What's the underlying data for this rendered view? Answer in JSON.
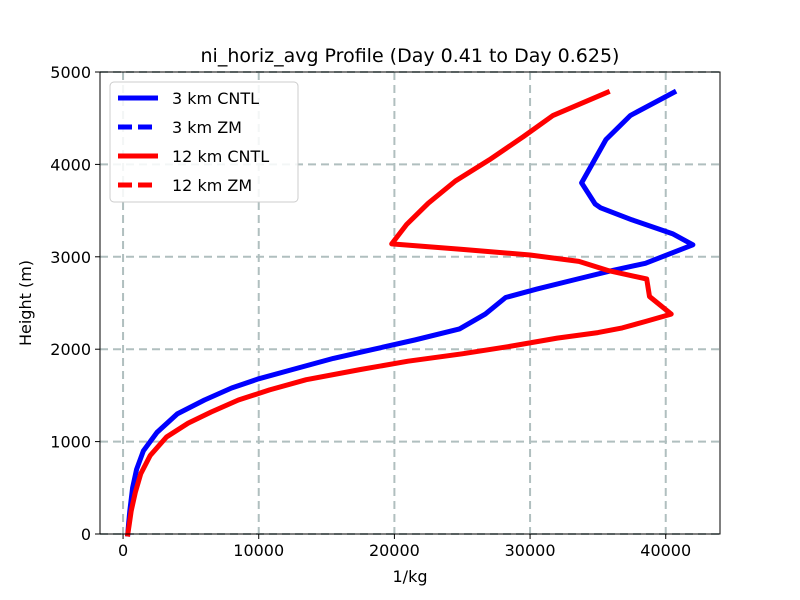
{
  "chart_data": {
    "type": "line",
    "title": "ni_horiz_avg Profile (Day 0.41 to Day 0.625)",
    "xlabel": "1/kg",
    "ylabel": "Height (m)",
    "xlim": [
      -1700,
      44000
    ],
    "ylim": [
      0,
      5000
    ],
    "xticks": [
      0,
      10000,
      20000,
      30000,
      40000
    ],
    "yticks": [
      0,
      1000,
      2000,
      3000,
      4000,
      5000
    ],
    "xtick_labels": [
      "0",
      "10000",
      "20000",
      "30000",
      "40000"
    ],
    "ytick_labels": [
      "0",
      "1000",
      "2000",
      "3000",
      "4000",
      "5000"
    ],
    "grid": true,
    "legend_position": "top-left",
    "series": [
      {
        "name": "3 km CNTL",
        "color": "#0000ff",
        "style": "solid",
        "points": [
          [
            350,
            0
          ],
          [
            400,
            100
          ],
          [
            500,
            250
          ],
          [
            700,
            500
          ],
          [
            1000,
            700
          ],
          [
            1500,
            900
          ],
          [
            2500,
            1100
          ],
          [
            4000,
            1300
          ],
          [
            6000,
            1450
          ],
          [
            8000,
            1580
          ],
          [
            10000,
            1680
          ],
          [
            12500,
            1780
          ],
          [
            15500,
            1900
          ],
          [
            18500,
            2000
          ],
          [
            21500,
            2100
          ],
          [
            24800,
            2220
          ],
          [
            26700,
            2380
          ],
          [
            28200,
            2560
          ],
          [
            30500,
            2650
          ],
          [
            33500,
            2760
          ],
          [
            36000,
            2850
          ],
          [
            38500,
            2930
          ],
          [
            42000,
            3130
          ],
          [
            40500,
            3250
          ],
          [
            37500,
            3400
          ],
          [
            35200,
            3530
          ],
          [
            34800,
            3570
          ],
          [
            33800,
            3800
          ],
          [
            35600,
            4270
          ],
          [
            37400,
            4530
          ],
          [
            40600,
            4780
          ]
        ]
      },
      {
        "name": "3 km ZM",
        "color": "#0000ff",
        "style": "dashed",
        "points": []
      },
      {
        "name": "12 km CNTL",
        "color": "#ff0000",
        "style": "solid",
        "points": [
          [
            350,
            0
          ],
          [
            450,
            100
          ],
          [
            600,
            250
          ],
          [
            900,
            450
          ],
          [
            1300,
            650
          ],
          [
            2000,
            850
          ],
          [
            3200,
            1050
          ],
          [
            4800,
            1200
          ],
          [
            6500,
            1320
          ],
          [
            8500,
            1450
          ],
          [
            10800,
            1560
          ],
          [
            13500,
            1670
          ],
          [
            17500,
            1780
          ],
          [
            21000,
            1870
          ],
          [
            25000,
            1950
          ],
          [
            28500,
            2030
          ],
          [
            32000,
            2120
          ],
          [
            35000,
            2180
          ],
          [
            36800,
            2230
          ],
          [
            38500,
            2300
          ],
          [
            40400,
            2380
          ],
          [
            38800,
            2570
          ],
          [
            38600,
            2760
          ],
          [
            35800,
            2850
          ],
          [
            33600,
            2950
          ],
          [
            30000,
            3020
          ],
          [
            25000,
            3080
          ],
          [
            19800,
            3140
          ],
          [
            20900,
            3350
          ],
          [
            22500,
            3580
          ],
          [
            24500,
            3820
          ],
          [
            27000,
            4050
          ],
          [
            29500,
            4300
          ],
          [
            31700,
            4530
          ],
          [
            35700,
            4780
          ]
        ]
      },
      {
        "name": "12 km ZM",
        "color": "#ff0000",
        "style": "dashed",
        "points": []
      }
    ]
  }
}
